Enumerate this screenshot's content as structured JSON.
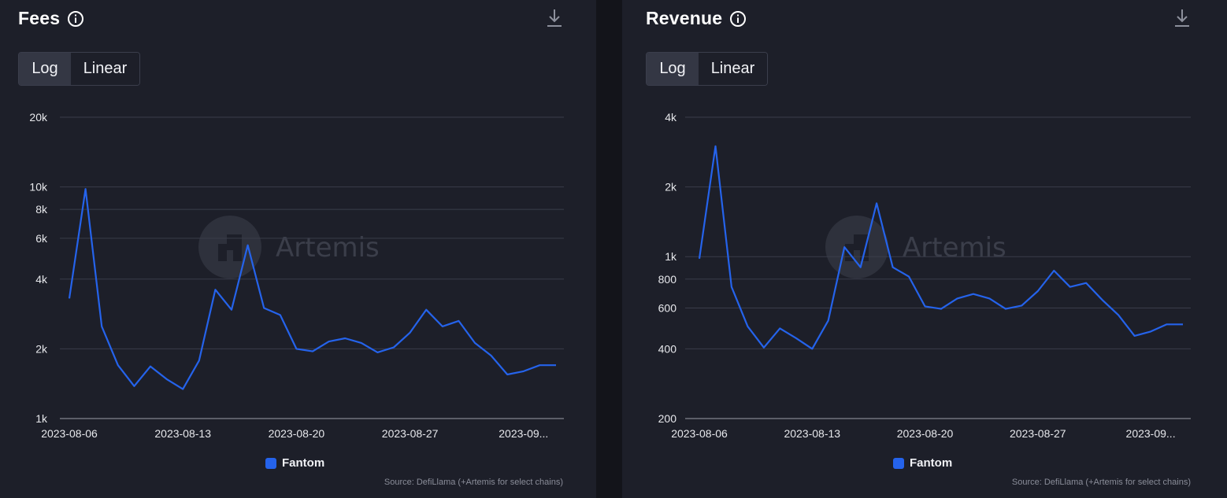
{
  "charts": [
    {
      "title": "Fees",
      "toggle": {
        "log_label": "Log",
        "linear_label": "Linear",
        "selected": "Log"
      },
      "legend": {
        "name": "Fantom",
        "color": "#2563eb"
      },
      "source": "Source: DefiLlama (+Artemis for select chains)",
      "watermark": "Artemis",
      "icons": {
        "info": "info-icon",
        "download": "download-icon"
      }
    },
    {
      "title": "Revenue",
      "toggle": {
        "log_label": "Log",
        "linear_label": "Linear",
        "selected": "Log"
      },
      "legend": {
        "name": "Fantom",
        "color": "#2563eb"
      },
      "source": "Source: DefiLlama (+Artemis for select chains)",
      "watermark": "Artemis",
      "icons": {
        "info": "info-icon",
        "download": "download-icon"
      }
    }
  ],
  "chart_data": [
    {
      "type": "line",
      "title": "Fees",
      "scale": "log",
      "ylim": [
        1000,
        20000
      ],
      "yticks": [
        1000,
        2000,
        4000,
        6000,
        8000,
        10000,
        20000
      ],
      "ytick_labels": [
        "1k",
        "2k",
        "4k",
        "6k",
        "8k",
        "10k",
        "20k"
      ],
      "xtick_labels": [
        "2023-08-06",
        "2023-08-13",
        "2023-08-20",
        "2023-08-27",
        "2023-09..."
      ],
      "grid": true,
      "legend_position": "bottom-center",
      "x": [
        "2023-08-06",
        "2023-08-07",
        "2023-08-08",
        "2023-08-09",
        "2023-08-10",
        "2023-08-11",
        "2023-08-12",
        "2023-08-13",
        "2023-08-14",
        "2023-08-15",
        "2023-08-16",
        "2023-08-17",
        "2023-08-18",
        "2023-08-19",
        "2023-08-20",
        "2023-08-21",
        "2023-08-22",
        "2023-08-23",
        "2023-08-24",
        "2023-08-25",
        "2023-08-26",
        "2023-08-27",
        "2023-08-28",
        "2023-08-29",
        "2023-08-30",
        "2023-08-31",
        "2023-09-01",
        "2023-09-02",
        "2023-09-03",
        "2023-09-04",
        "2023-09-05"
      ],
      "series": [
        {
          "name": "Fantom",
          "color": "#2563eb",
          "values": [
            3300,
            9800,
            2500,
            1700,
            1380,
            1680,
            1480,
            1340,
            1780,
            3600,
            2950,
            5600,
            3000,
            2800,
            2000,
            1950,
            2150,
            2220,
            2120,
            1930,
            2030,
            2350,
            2950,
            2500,
            2640,
            2120,
            1870,
            1550,
            1600,
            1700,
            1700
          ]
        }
      ]
    },
    {
      "type": "line",
      "title": "Revenue",
      "scale": "log",
      "ylim": [
        200,
        4000
      ],
      "yticks": [
        200,
        400,
        600,
        800,
        1000,
        2000,
        4000
      ],
      "ytick_labels": [
        "200",
        "400",
        "600",
        "800",
        "1k",
        "2k",
        "4k"
      ],
      "xtick_labels": [
        "2023-08-06",
        "2023-08-13",
        "2023-08-20",
        "2023-08-27",
        "2023-09..."
      ],
      "grid": true,
      "legend_position": "bottom-center",
      "x": [
        "2023-08-06",
        "2023-08-07",
        "2023-08-08",
        "2023-08-09",
        "2023-08-10",
        "2023-08-11",
        "2023-08-12",
        "2023-08-13",
        "2023-08-14",
        "2023-08-15",
        "2023-08-16",
        "2023-08-17",
        "2023-08-18",
        "2023-08-19",
        "2023-08-20",
        "2023-08-21",
        "2023-08-22",
        "2023-08-23",
        "2023-08-24",
        "2023-08-25",
        "2023-08-26",
        "2023-08-27",
        "2023-08-28",
        "2023-08-29",
        "2023-08-30",
        "2023-08-31",
        "2023-09-01",
        "2023-09-02",
        "2023-09-03",
        "2023-09-04",
        "2023-09-05"
      ],
      "series": [
        {
          "name": "Fantom",
          "color": "#2563eb",
          "values": [
            980,
            3000,
            740,
            500,
            405,
            490,
            445,
            400,
            530,
            1100,
            900,
            1700,
            900,
            820,
            610,
            595,
            660,
            690,
            660,
            595,
            615,
            710,
            870,
            740,
            770,
            650,
            560,
            455,
            475,
            510,
            510
          ]
        }
      ]
    }
  ]
}
